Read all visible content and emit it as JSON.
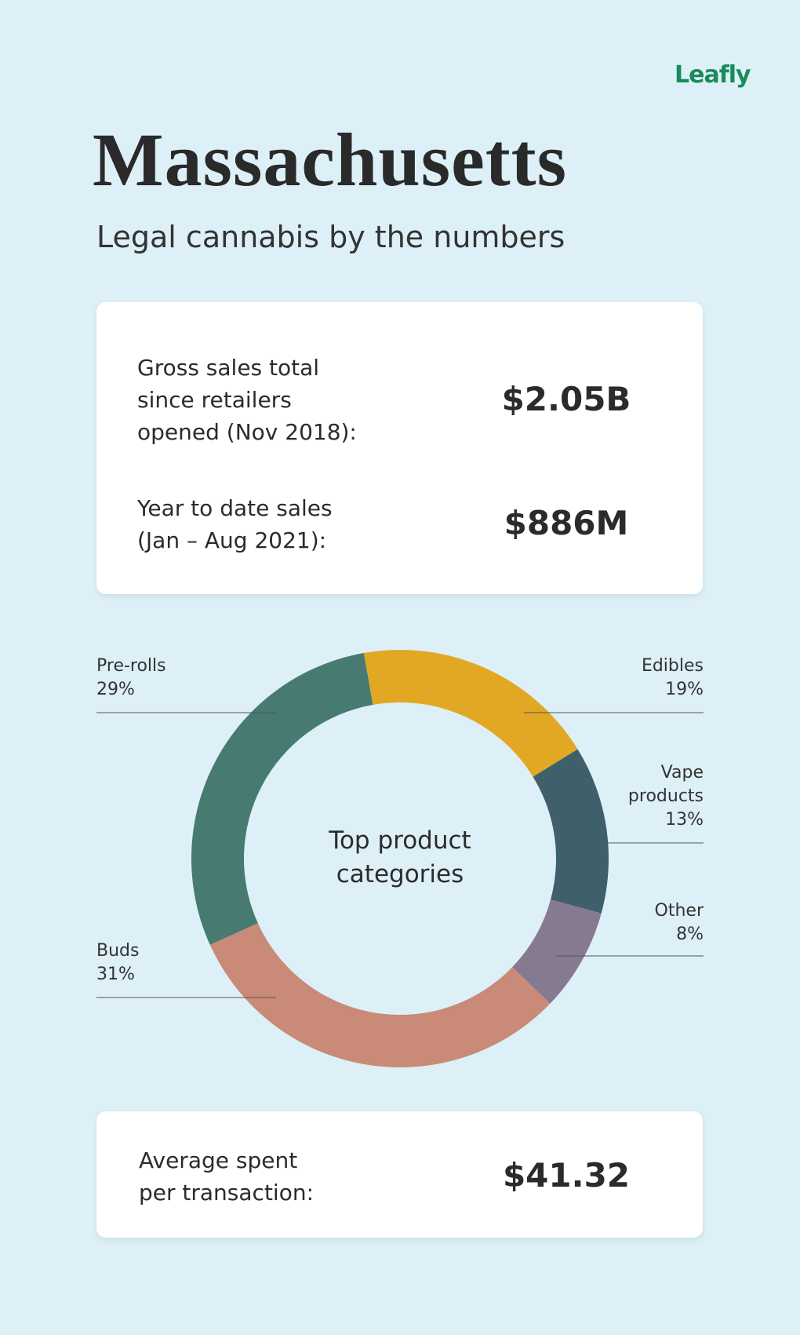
{
  "brand": "Leafly",
  "header": {
    "title": "Massachusetts",
    "subtitle": "Legal cannabis by the numbers"
  },
  "stats": [
    {
      "label_lines": [
        "Gross sales total",
        "since retailers",
        "opened (Nov 2018):"
      ],
      "value": "$2.05B"
    },
    {
      "label_lines": [
        "Year to date sales",
        "(Jan – Aug 2021):"
      ],
      "value": "$886M"
    }
  ],
  "chart_data": {
    "type": "pie",
    "title": "Top product categories",
    "categories": [
      "Edibles",
      "Vape products",
      "Other",
      "Buds",
      "Pre-rolls"
    ],
    "values": [
      19,
      13,
      8,
      31,
      29
    ],
    "value_labels": [
      "19%",
      "13%",
      "8%",
      "31%",
      "29%"
    ],
    "colors": [
      "#e2a824",
      "#3f5f6b",
      "#857a8f",
      "#c98a78",
      "#477a70"
    ]
  },
  "footer_stat": {
    "label_lines": [
      "Average spent",
      "per transaction:"
    ],
    "value": "$41.32"
  }
}
